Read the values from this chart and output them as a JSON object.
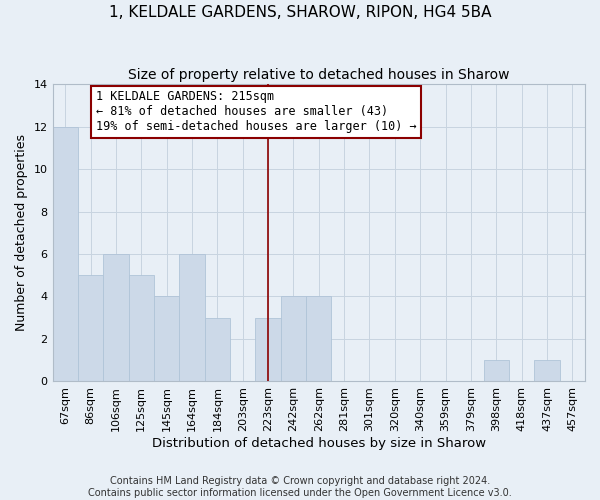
{
  "title": "1, KELDALE GARDENS, SHAROW, RIPON, HG4 5BA",
  "subtitle": "Size of property relative to detached houses in Sharow",
  "xlabel": "Distribution of detached houses by size in Sharow",
  "ylabel": "Number of detached properties",
  "footer_lines": [
    "Contains HM Land Registry data © Crown copyright and database right 2024.",
    "Contains public sector information licensed under the Open Government Licence v3.0."
  ],
  "bins": [
    "67sqm",
    "86sqm",
    "106sqm",
    "125sqm",
    "145sqm",
    "164sqm",
    "184sqm",
    "203sqm",
    "223sqm",
    "242sqm",
    "262sqm",
    "281sqm",
    "301sqm",
    "320sqm",
    "340sqm",
    "359sqm",
    "379sqm",
    "398sqm",
    "418sqm",
    "437sqm",
    "457sqm"
  ],
  "counts": [
    12,
    5,
    6,
    5,
    4,
    6,
    3,
    0,
    3,
    4,
    4,
    0,
    0,
    0,
    0,
    0,
    0,
    1,
    0,
    1,
    0
  ],
  "bar_color": "#ccd9e8",
  "bar_edge_color": "#b0c4d8",
  "vline_x_index": 8,
  "vline_color": "#8b0000",
  "annotation_box_text": "1 KELDALE GARDENS: 215sqm\n← 81% of detached houses are smaller (43)\n19% of semi-detached houses are larger (10) →",
  "annotation_box_edge_color": "#8b0000",
  "annotation_box_face_color": "#ffffff",
  "ylim": [
    0,
    14
  ],
  "yticks": [
    0,
    2,
    4,
    6,
    8,
    10,
    12,
    14
  ],
  "grid_color": "#c8d4e0",
  "background_color": "#e8eff6",
  "title_fontsize": 11,
  "subtitle_fontsize": 10,
  "annotation_fontsize": 8.5,
  "xlabel_fontsize": 9.5,
  "ylabel_fontsize": 9,
  "tick_fontsize": 8,
  "footer_fontsize": 7
}
